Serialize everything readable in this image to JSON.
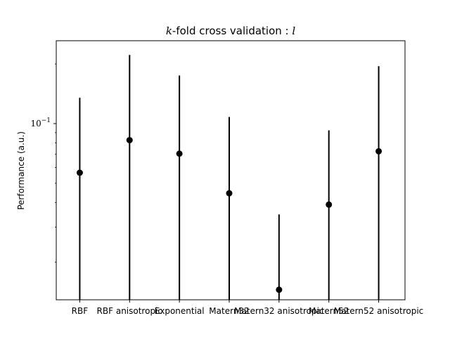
{
  "chart_data": {
    "type": "scatter",
    "title": {
      "math": "k",
      "text": "-fold cross validation : ",
      "math2": "l"
    },
    "xlabel": "",
    "ylabel": "Performance (a.u.)",
    "yscale": "log",
    "ylim": [
      0.0129,
      0.262
    ],
    "grid": false,
    "legend": false,
    "ytick_labels": [
      {
        "value": 0.1,
        "base": "10",
        "exponent": "−1"
      }
    ],
    "categories": [
      "RBF",
      "RBF anisotropic",
      "Exponential",
      "Matern32",
      "Matern32 anisotropic",
      "Matern52",
      "Matern52 anisotropic"
    ],
    "values": [
      0.0565,
      0.0825,
      0.0705,
      0.0445,
      0.0145,
      0.039,
      0.0725
    ],
    "error_low": [
      0.0128,
      0.0128,
      0.0128,
      0.0128,
      0.0128,
      0.0128,
      0.0128
    ],
    "error_high": [
      0.135,
      0.222,
      0.175,
      0.108,
      0.0348,
      0.0925,
      0.195
    ],
    "marker_color": "#000000",
    "errorbar_color": "#000000"
  }
}
